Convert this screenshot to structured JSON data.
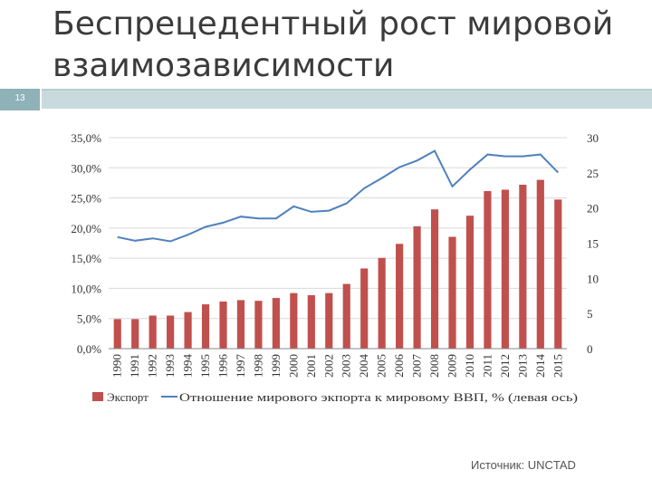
{
  "slide": {
    "number": "13"
  },
  "title": "Беспрецедентный рост мировой взаимозависимости",
  "source": "Источник: UNCTAD",
  "chart_data": {
    "type": "bar+line",
    "categories": [
      "1990",
      "1991",
      "1992",
      "1993",
      "1994",
      "1995",
      "1996",
      "1997",
      "1998",
      "1999",
      "2000",
      "2001",
      "2002",
      "2003",
      "2004",
      "2005",
      "2006",
      "2007",
      "2008",
      "2009",
      "2010",
      "2011",
      "2012",
      "2013",
      "2014",
      "2015"
    ],
    "series": [
      {
        "name": "Экспорт",
        "type": "bar",
        "axis": "right",
        "color": "#c0504d",
        "values": [
          4.2,
          4.2,
          4.7,
          4.7,
          5.2,
          6.3,
          6.7,
          6.9,
          6.8,
          7.2,
          7.9,
          7.6,
          7.9,
          9.2,
          11.4,
          12.9,
          14.9,
          17.4,
          19.8,
          15.9,
          18.9,
          22.4,
          22.6,
          23.3,
          24.0,
          21.2
        ]
      },
      {
        "name": "Отношение мирового экпорта к мировому ВВП, % (левая ось)",
        "type": "line",
        "axis": "left",
        "color": "#4f81bd",
        "values": [
          18.5,
          17.9,
          18.3,
          17.8,
          18.9,
          20.2,
          20.9,
          21.9,
          21.6,
          21.6,
          23.6,
          22.7,
          22.9,
          24.1,
          26.6,
          28.3,
          30.1,
          31.2,
          32.8,
          26.9,
          29.7,
          32.2,
          31.9,
          31.9,
          32.2,
          29.2
        ]
      }
    ],
    "y_left": {
      "min": 0,
      "max": 35,
      "step": 5,
      "tick_labels": [
        "0,0%",
        "5,0%",
        "10,0%",
        "15,0%",
        "20,0%",
        "25,0%",
        "30,0%",
        "35,0%"
      ]
    },
    "y_right": {
      "min": 0,
      "max": 30,
      "step": 5,
      "tick_labels": [
        "0",
        "5",
        "10",
        "15",
        "20",
        "25",
        "30"
      ]
    },
    "legend": {
      "position": "bottom",
      "labels": [
        "Экспорт",
        "Отношение мирового экпорта к мировому ВВП, % (левая ось)"
      ]
    },
    "grid": true
  }
}
